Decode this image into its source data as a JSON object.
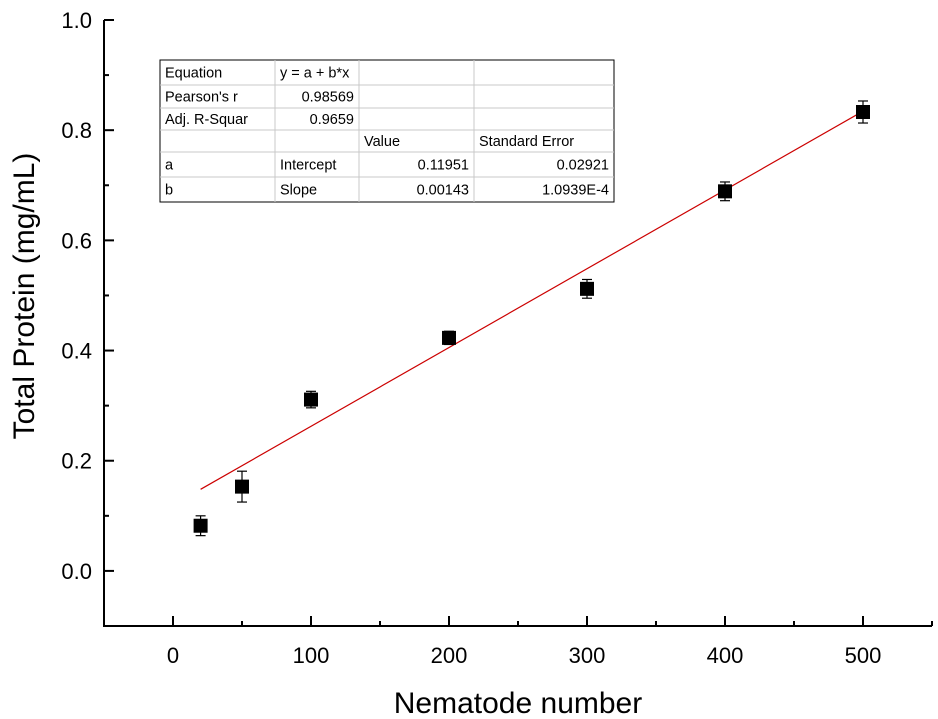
{
  "chart_data": {
    "type": "scatter",
    "xlabel": "Nematode number",
    "ylabel": "Total Protein (mg/mL)",
    "xlim": [
      -50,
      550
    ],
    "ylim": [
      -0.1,
      1.0
    ],
    "xticks": [
      0,
      100,
      200,
      300,
      400,
      500
    ],
    "xtick_labels": [
      "0",
      "100",
      "200",
      "300",
      "400",
      "500"
    ],
    "yticks": [
      0.0,
      0.2,
      0.4,
      0.6,
      0.8,
      1.0
    ],
    "ytick_labels": [
      "0.0",
      "0.2",
      "0.4",
      "0.6",
      "0.8",
      "1.0"
    ],
    "x_minor_step": 50,
    "y_minor_step": 0.1,
    "series": [
      {
        "marker": "square",
        "color": "#000000",
        "x": [
          20,
          50,
          100,
          200,
          300,
          400,
          500
        ],
        "y": [
          0.082,
          0.153,
          0.311,
          0.423,
          0.512,
          0.689,
          0.833
        ],
        "error": [
          0.018,
          0.028,
          0.015,
          0.012,
          0.017,
          0.017,
          0.02
        ]
      }
    ],
    "fit_line": {
      "color": "#cc0000",
      "intercept": 0.11951,
      "slope": 0.00143,
      "x_range": [
        20,
        500
      ]
    },
    "stats_table": {
      "rows": [
        [
          "Equation",
          "y = a + b*x",
          "",
          ""
        ],
        [
          "Pearson's r",
          "0.98569",
          "",
          ""
        ],
        [
          "Adj. R-Squar",
          "0.9659",
          "",
          ""
        ],
        [
          "",
          "",
          "Value",
          "Standard Error"
        ],
        [
          "a",
          "Intercept",
          "0.11951",
          "0.02921"
        ],
        [
          "b",
          "Slope",
          "0.00143",
          "1.0939E-4"
        ]
      ]
    },
    "grid": false,
    "legend": "none"
  }
}
